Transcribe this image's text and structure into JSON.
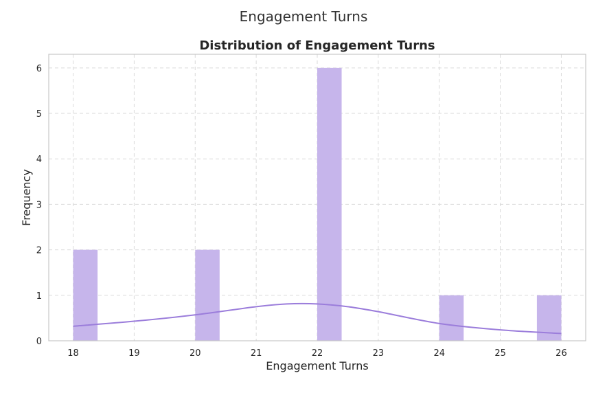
{
  "suptitle": "Engagement Turns",
  "chart_data": {
    "type": "bar",
    "title": "Distribution of Engagement Turns",
    "xlabel": "Engagement Turns",
    "ylabel": "Frequency",
    "xlim": [
      17.6,
      26.4
    ],
    "ylim": [
      0,
      6.3
    ],
    "xticks": [
      18,
      19,
      20,
      21,
      22,
      23,
      24,
      25,
      26
    ],
    "yticks": [
      0,
      1,
      2,
      3,
      4,
      5,
      6
    ],
    "bins": [
      {
        "x0": 18.0,
        "x1": 18.4,
        "value": 2
      },
      {
        "x0": 20.0,
        "x1": 20.4,
        "value": 2
      },
      {
        "x0": 22.0,
        "x1": 22.4,
        "value": 6
      },
      {
        "x0": 24.0,
        "x1": 24.4,
        "value": 1
      },
      {
        "x0": 25.6,
        "x1": 26.0,
        "value": 1
      }
    ],
    "kde": {
      "x": [
        18,
        19,
        20,
        21,
        21.5,
        22,
        22.5,
        23,
        24,
        25,
        26
      ],
      "y": [
        0.32,
        0.43,
        0.57,
        0.75,
        0.81,
        0.81,
        0.75,
        0.64,
        0.38,
        0.24,
        0.16
      ]
    },
    "grid": true,
    "bar_color": "#c6b5eb",
    "kde_color": "#9b7ddb"
  }
}
